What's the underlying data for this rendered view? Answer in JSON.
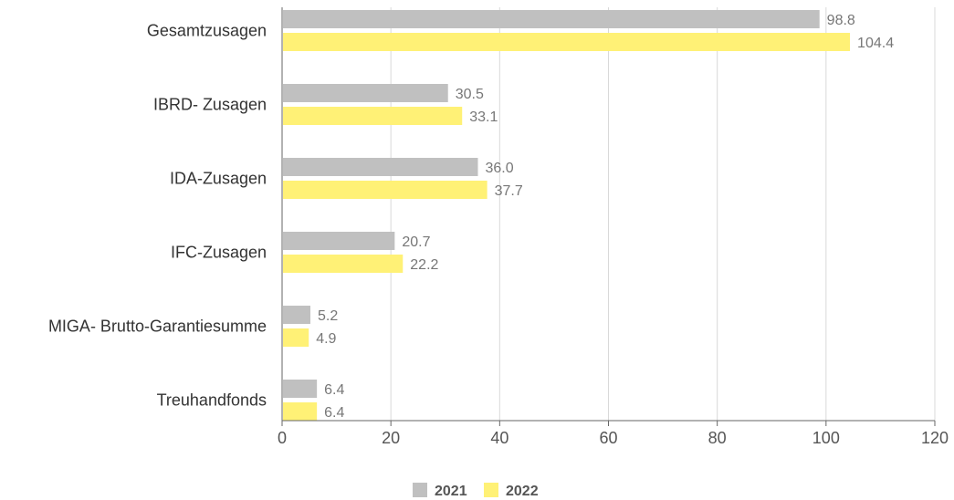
{
  "chart_data": {
    "type": "bar",
    "orientation": "horizontal",
    "categories": [
      "Gesamtzusagen",
      "IBRD- Zusagen",
      "IDA-Zusagen",
      "IFC-Zusagen",
      "MIGA- Brutto-Garantiesumme",
      "Treuhandfonds"
    ],
    "series": [
      {
        "name": "2021",
        "color": "#c0c0c0",
        "values": [
          98.8,
          30.5,
          36.0,
          20.7,
          5.2,
          6.4
        ]
      },
      {
        "name": "2022",
        "color": "#fff176",
        "values": [
          104.4,
          33.1,
          37.7,
          22.2,
          4.9,
          6.4
        ]
      }
    ],
    "value_labels": [
      [
        "98.8",
        "30.5",
        "36.0",
        "20.7",
        "5.2",
        "6.4"
      ],
      [
        "104.4",
        "33.1",
        "37.7",
        "22.2",
        "4.9",
        "6.4"
      ]
    ],
    "xlim": [
      0,
      120
    ],
    "xticks": [
      0,
      20,
      40,
      60,
      80,
      100,
      120
    ],
    "grid": true,
    "legend_position": "bottom-center",
    "title": "",
    "xlabel": "",
    "ylabel": ""
  }
}
